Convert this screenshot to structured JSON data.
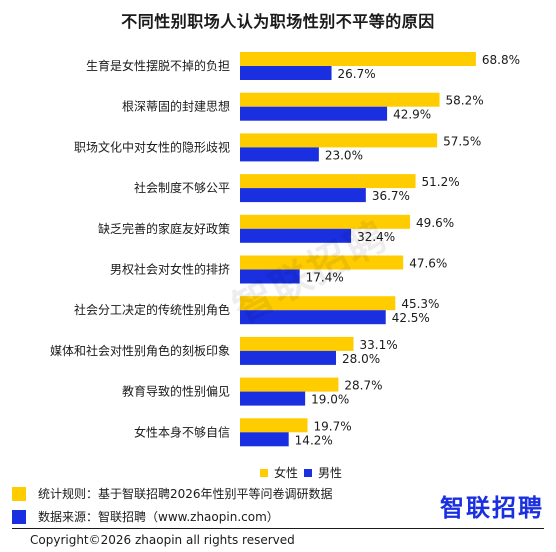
{
  "chart_data": {
    "type": "bar",
    "title": "不同性别职场人认为职场性别不平等的原因",
    "categories": [
      "生育是女性摆脱不掉的负担",
      "根深蒂固的封建思想",
      "职场文化中对女性的隐形歧视",
      "社会制度不够公平",
      "缺乏完善的家庭友好政策",
      "男权社会对女性的排挤",
      "社会分工决定的传统性别角色",
      "媒体和社会对性别角色的刻板印象",
      "教育导致的性别偏见",
      "女性本身不够自信"
    ],
    "series": [
      {
        "name": "女性",
        "color": "#FFCC00",
        "values": [
          68.8,
          58.2,
          57.5,
          51.2,
          49.6,
          47.6,
          45.3,
          33.1,
          28.7,
          19.7
        ]
      },
      {
        "name": "男性",
        "color": "#1A2FE0",
        "values": [
          26.7,
          42.9,
          23.0,
          36.7,
          32.4,
          17.4,
          42.5,
          28.0,
          19.0,
          14.2
        ]
      }
    ],
    "value_labels": [
      [
        "68.8%",
        "58.2%",
        "57.5%",
        "51.2%",
        "49.6%",
        "47.6%",
        "45.3%",
        "33.1%",
        "28.7%",
        "19.7%"
      ],
      [
        "26.7%",
        "42.9%",
        "23.0%",
        "36.7%",
        "32.4%",
        "17.4%",
        "42.5%",
        "28.0%",
        "19.0%",
        "14.2%"
      ]
    ],
    "orientation": "horizontal",
    "xlim": [
      0,
      70
    ],
    "grid": false,
    "legend_position": "bottom-center"
  },
  "legend": {
    "female": "女性",
    "male": "男性"
  },
  "notes": {
    "rule": "统计规则：基于智联招聘2026年性别平等问卷调研数据",
    "source": "数据来源：智联招聘（www.zhaopin.com）"
  },
  "logo": "智联招聘",
  "watermark": "智联招聘",
  "copyright": "Copyright©2026 zhaopin all rights reserved"
}
